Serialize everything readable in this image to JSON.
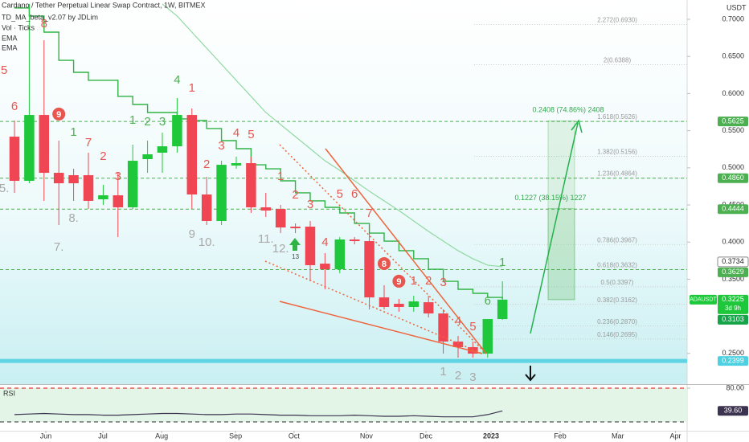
{
  "header": {
    "title": "Cardano / Tether Perpetual Linear Swap Contract, 1W, BITMEX",
    "indicators": [
      "TD_MA_beta_v2.07 by JDLim",
      "Vol · Ticks"
    ]
  },
  "chart_data": [
    {
      "type": "candlestick",
      "currency": "USDT",
      "symbol": "ADAUSDT",
      "up_color": "#1fc83a",
      "down_color": "#f04653",
      "x": [
        0,
        1,
        2,
        3,
        4,
        5,
        6,
        7,
        8,
        9,
        10,
        11,
        12,
        13,
        14,
        15,
        16,
        17,
        18,
        19,
        20,
        21,
        22,
        23,
        24,
        25,
        26,
        27,
        28,
        29,
        30,
        31,
        32,
        33
      ],
      "open": [
        0.542,
        0.4825,
        0.5712,
        0.4933,
        0.4901,
        0.4901,
        0.4576,
        0.463,
        0.4468,
        0.5117,
        0.5204,
        0.529,
        0.5712,
        0.4641,
        0.4284,
        0.5031,
        0.5063,
        0.4468,
        0.4446,
        0.4208,
        0.4208,
        0.371,
        0.3634,
        0.4035,
        0.4013,
        0.3255,
        0.3169,
        0.3126,
        0.319,
        0.3039,
        0.266,
        0.2585,
        0.2498,
        0.2963
      ],
      "high": [
        0.5637,
        0.7206,
        0.6719,
        0.5366,
        0.4987,
        0.5204,
        0.4771,
        0.4933,
        0.5312,
        0.5366,
        0.5474,
        0.594,
        0.5799,
        0.4879,
        0.5095,
        0.515,
        0.515,
        0.4663,
        0.45,
        0.4251,
        0.4284,
        0.3851,
        0.4067,
        0.4067,
        0.423,
        0.3418,
        0.3234,
        0.3277,
        0.3277,
        0.3093,
        0.2736,
        0.266,
        0.2963,
        0.3472
      ],
      "low": [
        0.4663,
        0.4792,
        0.4555,
        0.423,
        0.4555,
        0.4446,
        0.45,
        0.4067,
        0.4446,
        0.4933,
        0.4933,
        0.5204,
        0.4446,
        0.423,
        0.423,
        0.4987,
        0.4392,
        0.4338,
        0.4121,
        0.4121,
        0.3472,
        0.3364,
        0.358,
        0.397,
        0.3093,
        0.3093,
        0.3061,
        0.3061,
        0.2985,
        0.2498,
        0.2444,
        0.2444,
        0.2444,
        0.2953
      ],
      "close": [
        0.4825,
        0.5712,
        0.4933,
        0.4792,
        0.4792,
        0.4555,
        0.463,
        0.4468,
        0.5095,
        0.5182,
        0.529,
        0.5712,
        0.4641,
        0.4284,
        0.5041,
        0.5063,
        0.4468,
        0.4425,
        0.4197,
        0.4186,
        0.3689,
        0.3634,
        0.4035,
        0.4013,
        0.3255,
        0.3126,
        0.3126,
        0.3201,
        0.3039,
        0.266,
        0.2585,
        0.2498,
        0.2963,
        0.3225
      ],
      "series": [
        {
          "name": "EMA",
          "color": "#2fb344",
          "step": true,
          "values": [
            0.7152,
            0.7044,
            0.6827,
            0.6448,
            0.6286,
            0.6178,
            0.6178,
            0.5962,
            0.5853,
            0.5745,
            0.5745,
            0.5659,
            0.5637,
            0.5529,
            0.5366,
            0.5258,
            0.5041,
            0.4987,
            0.4825,
            0.4663,
            0.4555,
            0.4468,
            0.4392,
            0.4251,
            0.4121,
            0.4013,
            0.3884,
            0.3776,
            0.3634,
            0.3472,
            0.3364,
            0.331,
            0.3255,
            0.3234
          ]
        },
        {
          "name": "EMA",
          "color": "#8fd9a0",
          "step": false,
          "values": [
            null,
            null,
            null,
            null,
            null,
            null,
            null,
            null,
            null,
            null,
            0.7206,
            0.7044,
            0.6827,
            0.6611,
            0.6394,
            0.6178,
            0.5962,
            0.5745,
            0.5583,
            0.542,
            0.5258,
            0.5095,
            0.4966,
            0.4825,
            0.4685,
            0.4555,
            0.4425,
            0.4284,
            0.4144,
            0.4013,
            0.3884,
            0.3776,
            0.3689,
            0.3668
          ]
        }
      ],
      "ylim": [
        0.2087,
        0.726
      ],
      "yticks": [
        {
          "value": 0.7,
          "label": "0.7000"
        },
        {
          "value": 0.65,
          "label": "0.6500"
        },
        {
          "value": 0.6,
          "label": "0.6000"
        },
        {
          "value": 0.55,
          "label": "0.5500"
        },
        {
          "value": 0.5,
          "label": "0.5000"
        },
        {
          "value": 0.45,
          "label": "0.4500"
        },
        {
          "value": 0.4,
          "label": "0.4000"
        },
        {
          "value": 0.35,
          "label": "0.3500"
        },
        {
          "value": 0.25,
          "label": "0.2500"
        }
      ],
      "xlim": [
        -0.978,
        45.49
      ],
      "xticks": [
        {
          "value": 2.12,
          "label": "Jun"
        },
        {
          "value": 5.98,
          "label": "Jul"
        },
        {
          "value": 9.95,
          "label": "Aug"
        },
        {
          "value": 14.95,
          "label": "Sep"
        },
        {
          "value": 18.91,
          "label": "Oct"
        },
        {
          "value": 23.8,
          "label": "Nov"
        },
        {
          "value": 27.83,
          "label": "Dec"
        },
        {
          "value": 32.23,
          "label": "2023",
          "bold": true
        },
        {
          "value": 36.9,
          "label": "Feb"
        },
        {
          "value": 40.8,
          "label": "Mar"
        },
        {
          "value": 44.7,
          "label": "Apr"
        }
      ],
      "fib_levels": [
        {
          "value": 0.693,
          "label": "2.272(0.6930)"
        },
        {
          "value": 0.6388,
          "label": "2(0.6388)"
        },
        {
          "value": 0.5626,
          "label": "1.618(0.5626)"
        },
        {
          "value": 0.5156,
          "label": "1.382(0.5156)"
        },
        {
          "value": 0.4864,
          "label": "1.236(0.4864)"
        },
        {
          "value": 0.3967,
          "label": "0.786(0.3967)"
        },
        {
          "value": 0.3632,
          "label": "0.618(0.3632)"
        },
        {
          "value": 0.3397,
          "label": "0.5(0.3397)"
        },
        {
          "value": 0.3162,
          "label": "0.382(0.3162)"
        },
        {
          "value": 0.287,
          "label": "0.236(0.2870)"
        },
        {
          "value": 0.2695,
          "label": "0.146(0.2695)"
        }
      ],
      "price_labels": [
        {
          "value": 0.5625,
          "label": "0.5625",
          "bg": "#4caf50",
          "fg": "#ffffff",
          "line": "dashed"
        },
        {
          "value": 0.486,
          "label": "0.4860",
          "bg": "#4caf50",
          "fg": "#ffffff",
          "line": "dashed"
        },
        {
          "value": 0.4444,
          "label": "0.4444",
          "bg": "#4caf50",
          "fg": "#ffffff",
          "line": "dashed"
        },
        {
          "value": 0.3734,
          "label": "0.3734",
          "bg": "#ffffff",
          "fg": "#222222",
          "line": null
        },
        {
          "value": 0.3629,
          "label": "0.3629",
          "bg": "#4caf50",
          "fg": "#ffffff",
          "line": "dashed"
        },
        {
          "value": 0.3225,
          "label": "0.3225",
          "bg": "#1fc83a",
          "fg": "#ffffff",
          "line": null,
          "sub": "3d 9h"
        },
        {
          "value": 0.3103,
          "label": "0.3103",
          "bg": "#16a34a",
          "fg": "#ffffff",
          "line": null
        },
        {
          "value": 0.2399,
          "label": "0.2399",
          "bg": "#4dd0e1",
          "fg": "#ffffff",
          "line": "solid"
        }
      ],
      "measurements": [
        {
          "label": "0.2408 (74.86%) 2408",
          "from": 0.3225,
          "to": 0.5633
        },
        {
          "label": "0.1227 (38.15%) 1227",
          "from": 0.3225,
          "to": 0.4452
        }
      ],
      "annotations": [
        {
          "text": "8",
          "x": 2,
          "y": 0.6935,
          "color": "#e8564f"
        },
        {
          "text": "5",
          "x": -0.7,
          "y": 0.6308,
          "color": "#e8564f"
        },
        {
          "text": "6",
          "x": 0,
          "y": 0.5821,
          "color": "#e8564f"
        },
        {
          "text": "9",
          "x": 3,
          "y": 0.5724,
          "color": "#e8564f",
          "circle": true
        },
        {
          "text": "7",
          "x": 5,
          "y": 0.5334,
          "color": "#e8564f"
        },
        {
          "text": "2",
          "x": 6,
          "y": 0.515,
          "color": "#e8564f"
        },
        {
          "text": "3",
          "x": 7,
          "y": 0.4879,
          "color": "#e8564f"
        },
        {
          "text": "1",
          "x": 12,
          "y": 0.607,
          "color": "#e8564f"
        },
        {
          "text": "2",
          "x": 13,
          "y": 0.5041,
          "color": "#e8564f"
        },
        {
          "text": "3",
          "x": 14,
          "y": 0.5291,
          "color": "#e8564f"
        },
        {
          "text": "4",
          "x": 15,
          "y": 0.5464,
          "color": "#e8564f"
        },
        {
          "text": "5",
          "x": 16,
          "y": 0.5442,
          "color": "#e8564f"
        },
        {
          "text": "1",
          "x": 18,
          "y": 0.4879,
          "color": "#e8564f"
        },
        {
          "text": "2",
          "x": 19,
          "y": 0.4631,
          "color": "#e8564f"
        },
        {
          "text": "3",
          "x": 20,
          "y": 0.4501,
          "color": "#e8564f"
        },
        {
          "text": "4",
          "x": 21,
          "y": 0.3992,
          "color": "#e8564f"
        },
        {
          "text": "5",
          "x": 22,
          "y": 0.4642,
          "color": "#e8564f"
        },
        {
          "text": "6",
          "x": 23,
          "y": 0.4642,
          "color": "#e8564f"
        },
        {
          "text": "7",
          "x": 24,
          "y": 0.4382,
          "color": "#e8564f"
        },
        {
          "text": "8",
          "x": 25,
          "y": 0.3711,
          "color": "#e8564f",
          "circle": true
        },
        {
          "text": "9",
          "x": 26,
          "y": 0.3473,
          "color": "#e8564f",
          "circle": true
        },
        {
          "text": "1",
          "x": 27,
          "y": 0.3473,
          "color": "#e8564f"
        },
        {
          "text": "2",
          "x": 28,
          "y": 0.3473,
          "color": "#e8564f"
        },
        {
          "text": "3",
          "x": 29,
          "y": 0.3451,
          "color": "#e8564f"
        },
        {
          "text": "4",
          "x": 30,
          "y": 0.2932,
          "color": "#e8564f"
        },
        {
          "text": "5",
          "x": 31,
          "y": 0.2856,
          "color": "#e8564f"
        },
        {
          "text": "1",
          "x": 4,
          "y": 0.5475,
          "color": "#4caf50"
        },
        {
          "text": "1",
          "x": 8,
          "y": 0.5637,
          "color": "#4caf50"
        },
        {
          "text": "2",
          "x": 9,
          "y": 0.5615,
          "color": "#4caf50"
        },
        {
          "text": "3",
          "x": 10,
          "y": 0.5615,
          "color": "#4caf50"
        },
        {
          "text": "4",
          "x": 11,
          "y": 0.6178,
          "color": "#4caf50"
        },
        {
          "text": "6",
          "x": 32,
          "y": 0.3203,
          "color": "#4caf50"
        },
        {
          "text": "1",
          "x": 33,
          "y": 0.3722,
          "color": "#4caf50"
        },
        {
          "text": "5.",
          "x": -0.7,
          "y": 0.4717,
          "color": "#a8a8a8"
        },
        {
          "text": "7.",
          "x": 3,
          "y": 0.3927,
          "color": "#a8a8a8"
        },
        {
          "text": "8.",
          "x": 4,
          "y": 0.4317,
          "color": "#a8a8a8"
        },
        {
          "text": "9",
          "x": 12,
          "y": 0.4101,
          "color": "#a8a8a8"
        },
        {
          "text": "10.",
          "x": 13,
          "y": 0.3992,
          "color": "#a8a8a8"
        },
        {
          "text": "11.",
          "x": 17,
          "y": 0.4036,
          "color": "#a8a8a8"
        },
        {
          "text": "12.",
          "x": 18,
          "y": 0.3906,
          "color": "#a8a8a8"
        },
        {
          "text": "13",
          "x": 19,
          "y": 0.3798,
          "color": "#4a4a4a",
          "small": true
        },
        {
          "text": "1",
          "x": 29,
          "y": 0.225,
          "color": "#a8a8a8"
        },
        {
          "text": "2",
          "x": 30,
          "y": 0.2196,
          "color": "#a8a8a8"
        },
        {
          "text": "3",
          "x": 31,
          "y": 0.2175,
          "color": "#a8a8a8"
        }
      ]
    },
    {
      "type": "line",
      "title": "RSI",
      "color": "#3b3350",
      "values": [
        33,
        34,
        35,
        34,
        33,
        33,
        32,
        32,
        33,
        34,
        35,
        35,
        34,
        33,
        33,
        34,
        34,
        33,
        32,
        32,
        31,
        31,
        31,
        32,
        31,
        30,
        30,
        31,
        30,
        29,
        29,
        29,
        33,
        39.6
      ],
      "last_label": "39.60",
      "ylim": [
        0,
        100
      ],
      "yticks": [
        {
          "value": 80,
          "label": "80.00"
        }
      ],
      "levels": [
        80,
        20
      ]
    }
  ]
}
